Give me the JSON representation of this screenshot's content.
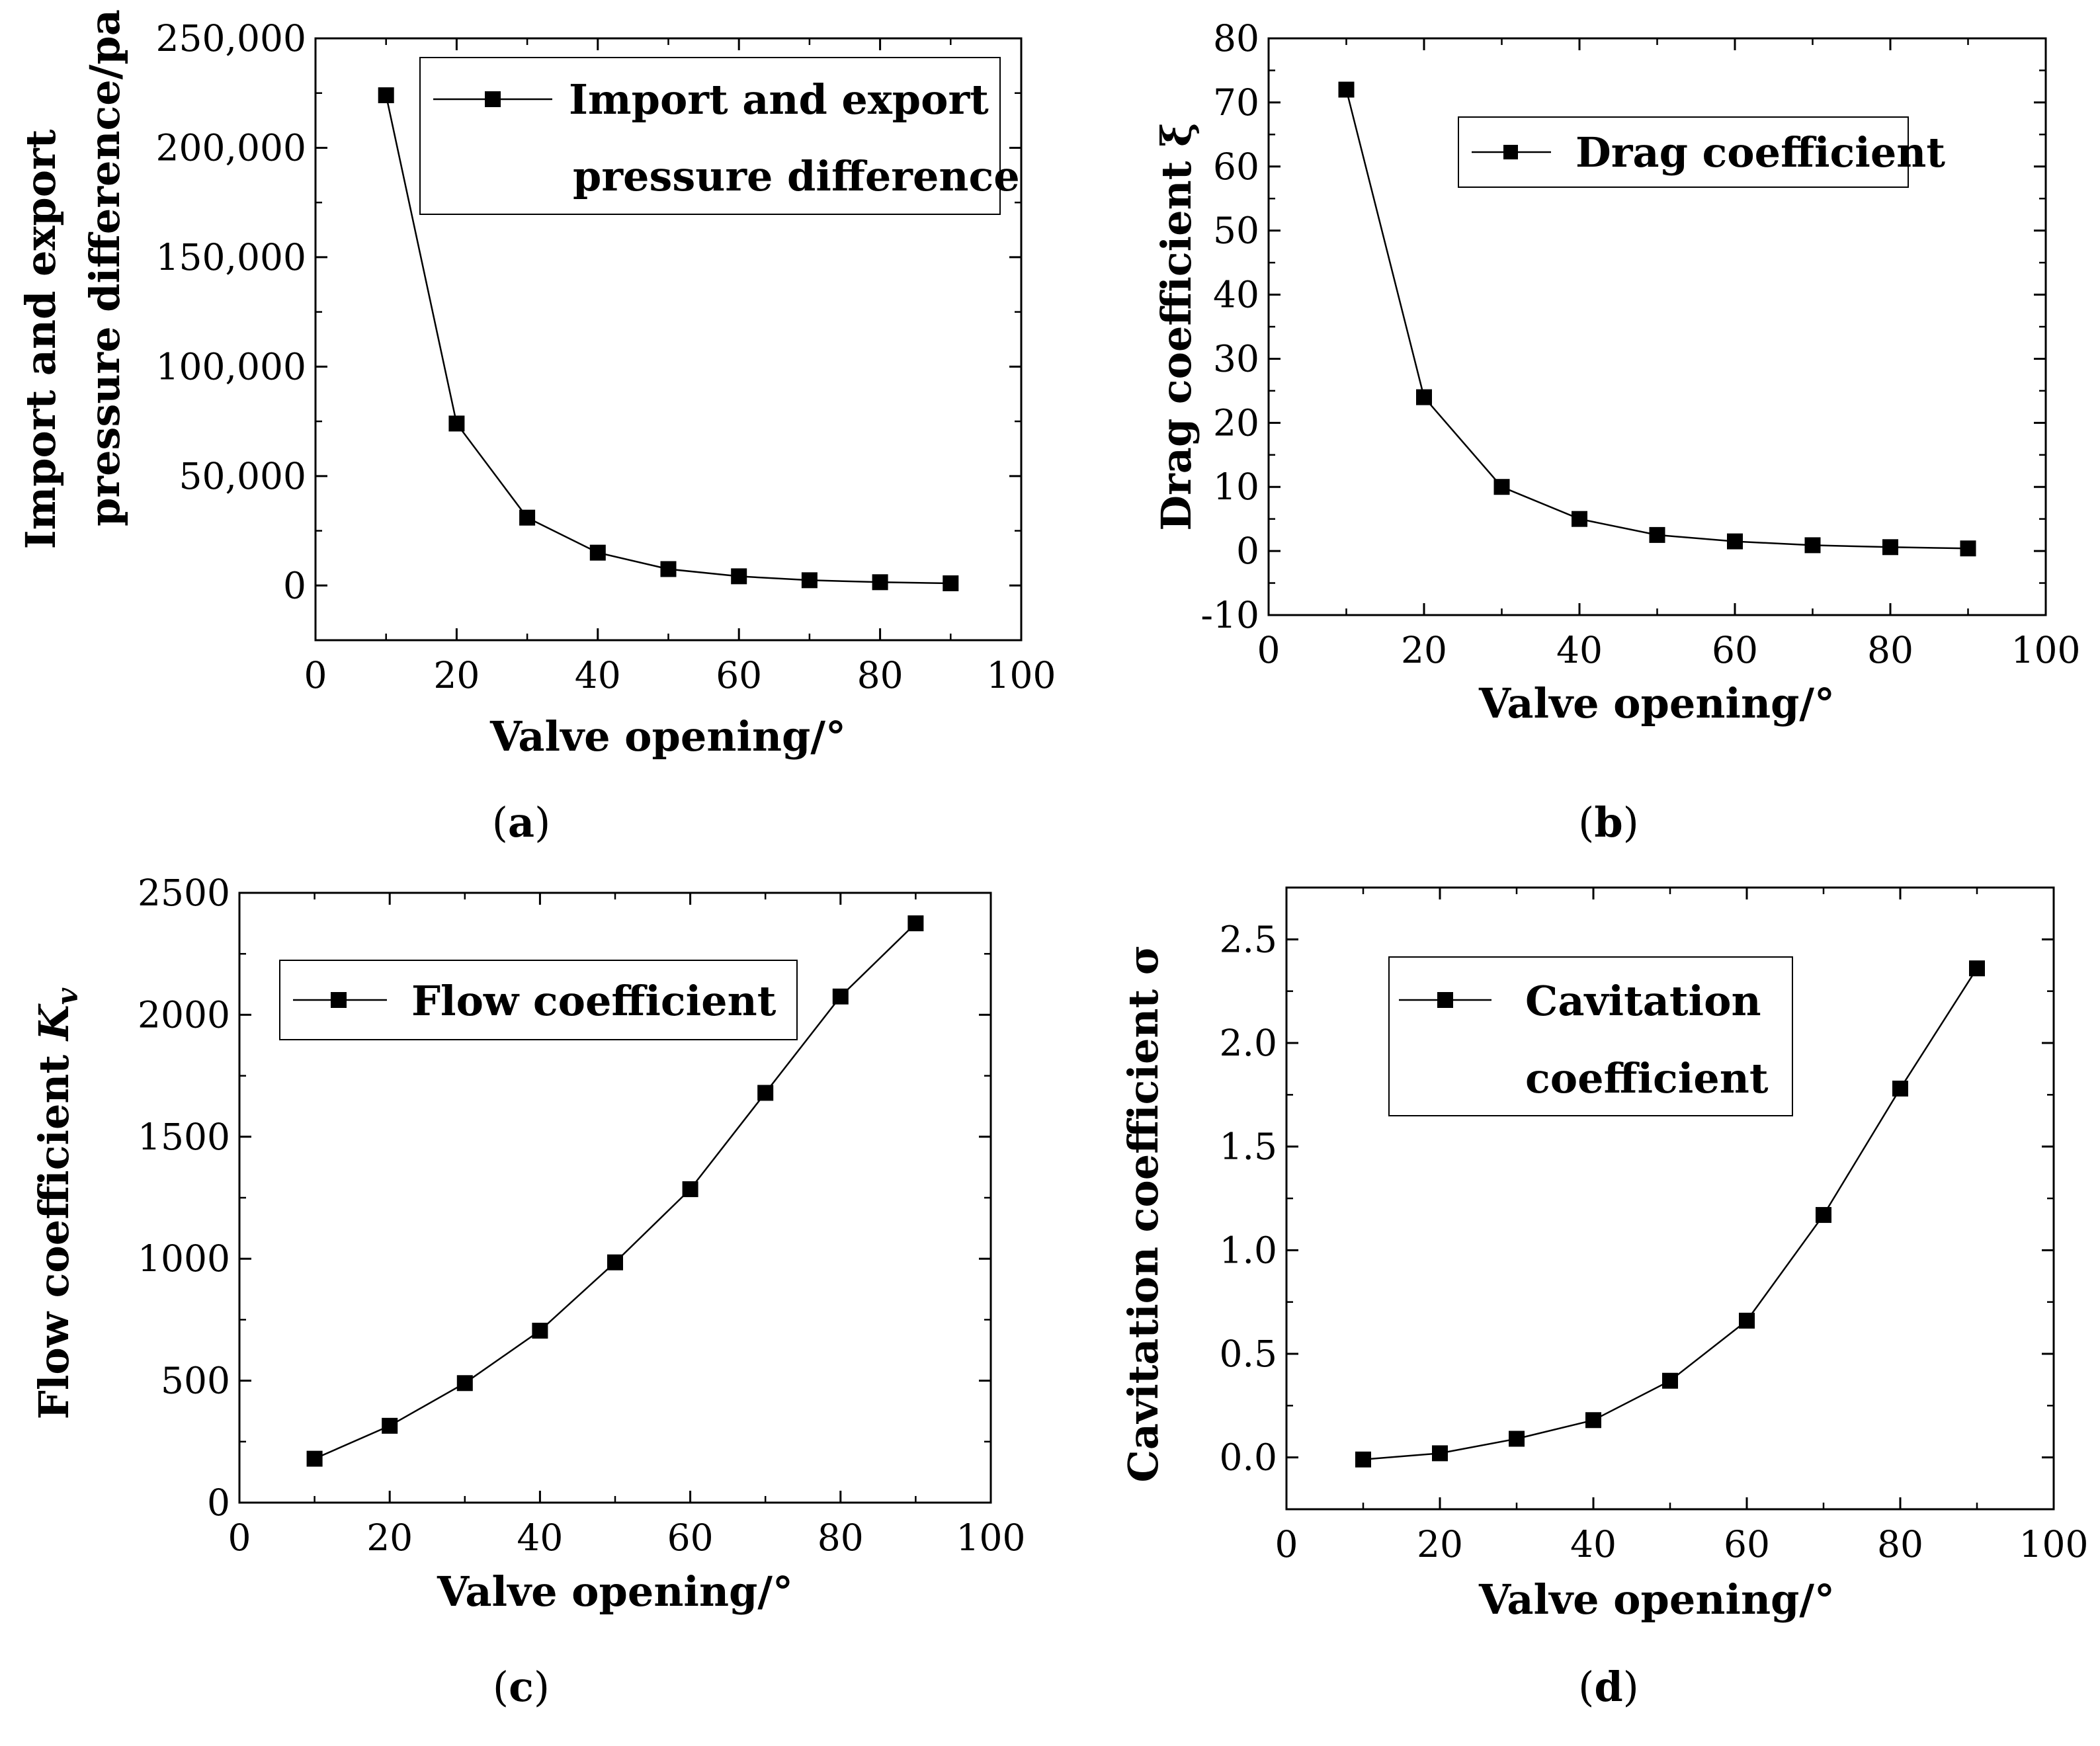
{
  "chart_data": [
    {
      "id": "a",
      "type": "line",
      "panel_label": "a",
      "xlabel": "Valve opening/°",
      "ylabel_lines": [
        "Import and export",
        "pressure difference/pa"
      ],
      "xlim": [
        0,
        100
      ],
      "ylim": [
        -25000,
        250000
      ],
      "xticks": [
        0,
        20,
        40,
        60,
        80,
        100
      ],
      "yticks": [
        0,
        50000,
        100000,
        150000,
        200000,
        250000
      ],
      "ytick_labels": [
        "0",
        "50,000",
        "100,000",
        "150,000",
        "200,000",
        "250,000"
      ],
      "xtick_labels": [
        "0",
        "20",
        "40",
        "60",
        "80",
        "100"
      ],
      "legend_placement": "top-right",
      "series": [
        {
          "name_lines": [
            "Import and export",
            "pressure difference"
          ],
          "marker": "square",
          "x": [
            10,
            20,
            30,
            40,
            50,
            60,
            70,
            80,
            90
          ],
          "y": [
            224000,
            74000,
            31000,
            15000,
            7500,
            4200,
            2400,
            1500,
            1000
          ]
        }
      ]
    },
    {
      "id": "b",
      "type": "line",
      "panel_label": "b",
      "xlabel": "Valve opening/°",
      "ylabel_lines": [
        "Drag coefficient ξ"
      ],
      "xlim": [
        0,
        100
      ],
      "ylim": [
        -10,
        80
      ],
      "xticks": [
        0,
        20,
        40,
        60,
        80,
        100
      ],
      "yticks": [
        -10,
        0,
        10,
        20,
        30,
        40,
        50,
        60,
        70,
        80
      ],
      "ytick_labels": [
        "-10",
        "0",
        "10",
        "20",
        "30",
        "40",
        "50",
        "60",
        "70",
        "80"
      ],
      "xtick_labels": [
        "0",
        "20",
        "40",
        "60",
        "80",
        "100"
      ],
      "legend_placement": "top-right",
      "series": [
        {
          "name_lines": [
            "Drag coefficient"
          ],
          "marker": "square",
          "x": [
            10,
            20,
            30,
            40,
            50,
            60,
            70,
            80,
            90
          ],
          "y": [
            72,
            24,
            10,
            5,
            2.5,
            1.5,
            0.9,
            0.6,
            0.4
          ]
        }
      ]
    },
    {
      "id": "c",
      "type": "line",
      "panel_label": "c",
      "xlabel": "Valve opening/°",
      "ylabel_lines": [
        "Flow coefficient K_v"
      ],
      "xlim": [
        0,
        100
      ],
      "ylim": [
        0,
        2500
      ],
      "xticks": [
        0,
        20,
        40,
        60,
        80,
        100
      ],
      "yticks": [
        0,
        500,
        1000,
        1500,
        2000,
        2500
      ],
      "ytick_labels": [
        "0",
        "500",
        "1000",
        "1500",
        "2000",
        "2500"
      ],
      "xtick_labels": [
        "0",
        "20",
        "40",
        "60",
        "80",
        "100"
      ],
      "legend_placement": "top-left",
      "series": [
        {
          "name_lines": [
            "Flow coefficient"
          ],
          "marker": "square",
          "x": [
            10,
            20,
            30,
            40,
            50,
            60,
            70,
            80,
            90
          ],
          "y": [
            180,
            315,
            490,
            705,
            985,
            1285,
            1680,
            2075,
            2375
          ]
        }
      ]
    },
    {
      "id": "d",
      "type": "line",
      "panel_label": "d",
      "xlabel": "Valve opening/°",
      "ylabel_lines": [
        "Cavitation coefficient σ"
      ],
      "xlim": [
        0,
        100
      ],
      "ylim": [
        -0.25,
        2.75
      ],
      "xticks": [
        0,
        20,
        40,
        60,
        80,
        100
      ],
      "yticks": [
        0.0,
        0.5,
        1.0,
        1.5,
        2.0,
        2.5
      ],
      "ytick_labels": [
        "0.0",
        "0.5",
        "1.0",
        "1.5",
        "2.0",
        "2.5"
      ],
      "xtick_labels": [
        "0",
        "20",
        "40",
        "60",
        "80",
        "100"
      ],
      "legend_placement": "top-left",
      "series": [
        {
          "name_lines": [
            "Cavitation",
            "coefficient"
          ],
          "marker": "square",
          "x": [
            10,
            20,
            30,
            40,
            50,
            60,
            70,
            80,
            90
          ],
          "y": [
            -0.01,
            0.02,
            0.09,
            0.18,
            0.37,
            0.66,
            1.17,
            1.78,
            2.36
          ]
        }
      ]
    }
  ]
}
